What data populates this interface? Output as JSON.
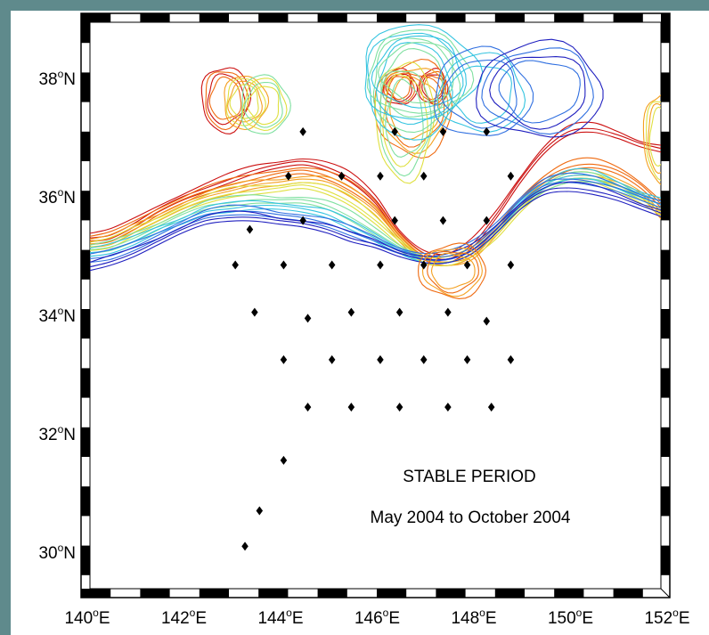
{
  "colors": {
    "frame_teal": "#5f8a8c",
    "frame_ticks": "#000000",
    "markers": "#000000",
    "palette": [
      "#1f1fbf",
      "#2f6fe0",
      "#35c4e0",
      "#7fe0a0",
      "#dfe040",
      "#f4a020",
      "#ef6a10",
      "#cc1010"
    ]
  },
  "annotation": {
    "line1": "STABLE PERIOD",
    "line2": "May 2004 to October 2004"
  },
  "x_axis_labels": [
    {
      "deg": "140",
      "hemi": "E"
    },
    {
      "deg": "142",
      "hemi": "E"
    },
    {
      "deg": "144",
      "hemi": "E"
    },
    {
      "deg": "146",
      "hemi": "E"
    },
    {
      "deg": "148",
      "hemi": "E"
    },
    {
      "deg": "150",
      "hemi": "E"
    },
    {
      "deg": "152",
      "hemi": "E"
    }
  ],
  "y_axis_labels": [
    {
      "deg": "38",
      "hemi": "N"
    },
    {
      "deg": "36",
      "hemi": "N"
    },
    {
      "deg": "34",
      "hemi": "N"
    },
    {
      "deg": "32",
      "hemi": "N"
    },
    {
      "deg": "30",
      "hemi": "N"
    }
  ],
  "map": {
    "lon_range": [
      140,
      152
    ],
    "lat_range": [
      29.1,
      39.0
    ],
    "degree_symbol": "o",
    "stations": [
      [
        144.5,
        37.1
      ],
      [
        146.4,
        37.1
      ],
      [
        147.4,
        37.1
      ],
      [
        148.3,
        37.1
      ],
      [
        144.2,
        36.35
      ],
      [
        145.3,
        36.35
      ],
      [
        146.1,
        36.35
      ],
      [
        147.0,
        36.35
      ],
      [
        148.8,
        36.35
      ],
      [
        144.5,
        35.6
      ],
      [
        146.4,
        35.6
      ],
      [
        147.4,
        35.6
      ],
      [
        148.3,
        35.6
      ],
      [
        143.4,
        35.45
      ],
      [
        143.1,
        34.85
      ],
      [
        144.1,
        34.85
      ],
      [
        145.1,
        34.85
      ],
      [
        146.1,
        34.85
      ],
      [
        147.0,
        34.85
      ],
      [
        147.9,
        34.85
      ],
      [
        148.8,
        34.85
      ],
      [
        143.5,
        34.05
      ],
      [
        144.6,
        33.95
      ],
      [
        145.5,
        34.05
      ],
      [
        146.5,
        34.05
      ],
      [
        147.5,
        34.05
      ],
      [
        148.3,
        33.9
      ],
      [
        144.1,
        33.25
      ],
      [
        145.1,
        33.25
      ],
      [
        146.1,
        33.25
      ],
      [
        147.0,
        33.25
      ],
      [
        147.9,
        33.25
      ],
      [
        148.8,
        33.25
      ],
      [
        144.6,
        32.45
      ],
      [
        145.5,
        32.45
      ],
      [
        146.5,
        32.45
      ],
      [
        147.5,
        32.45
      ],
      [
        148.4,
        32.45
      ],
      [
        144.1,
        31.55
      ],
      [
        143.6,
        30.7
      ],
      [
        143.3,
        30.1
      ]
    ],
    "path_lons": [
      140,
      140.5,
      141,
      141.5,
      142,
      142.5,
      143,
      143.5,
      144,
      144.5,
      145,
      145.5,
      146,
      146.5,
      147,
      147.5,
      148,
      148.5,
      149,
      149.5,
      150,
      150.5,
      151,
      151.5,
      152
    ],
    "front_lines": [
      {
        "color_index": 7,
        "lats": [
          35.3,
          35.35,
          35.55,
          35.8,
          36.0,
          36.15,
          36.3,
          36.45,
          36.55,
          36.6,
          36.5,
          36.3,
          35.95,
          35.4,
          35.05,
          34.95,
          35.2,
          35.7,
          36.3,
          36.8,
          37.1,
          37.15,
          37.05,
          36.9,
          36.8
        ]
      },
      {
        "color_index": 6,
        "lats": [
          35.25,
          35.3,
          35.5,
          35.75,
          35.95,
          36.1,
          36.2,
          36.3,
          36.4,
          36.45,
          36.35,
          36.15,
          35.85,
          35.35,
          35.0,
          34.9,
          35.05,
          35.45,
          35.95,
          36.3,
          36.5,
          36.55,
          36.45,
          36.2,
          35.8
        ]
      },
      {
        "color_index": 5,
        "lats": [
          35.2,
          35.25,
          35.45,
          35.65,
          35.85,
          36.0,
          36.1,
          36.2,
          36.25,
          36.3,
          36.25,
          36.05,
          35.75,
          35.3,
          34.95,
          34.9,
          35.0,
          35.4,
          35.85,
          36.2,
          36.35,
          36.35,
          36.25,
          36.05,
          35.6
        ]
      },
      {
        "color_index": 4,
        "lats": [
          35.15,
          35.2,
          35.4,
          35.6,
          35.8,
          35.95,
          36.05,
          36.1,
          36.15,
          36.2,
          36.1,
          35.9,
          35.6,
          35.25,
          34.95,
          34.9,
          35.05,
          35.35,
          35.8,
          36.15,
          36.3,
          36.3,
          36.15,
          35.95,
          35.7
        ]
      },
      {
        "color_index": 3,
        "lats": [
          35.1,
          35.15,
          35.3,
          35.5,
          35.7,
          35.85,
          35.9,
          35.95,
          35.95,
          35.95,
          35.85,
          35.65,
          35.4,
          35.15,
          34.95,
          34.95,
          35.1,
          35.45,
          35.85,
          36.15,
          36.3,
          36.3,
          36.2,
          36.0,
          35.85
        ]
      },
      {
        "color_index": 2,
        "lats": [
          35.05,
          35.1,
          35.25,
          35.45,
          35.6,
          35.75,
          35.8,
          35.85,
          35.85,
          35.8,
          35.7,
          35.5,
          35.3,
          35.1,
          34.95,
          34.95,
          35.1,
          35.45,
          35.9,
          36.2,
          36.35,
          36.35,
          36.2,
          36.05,
          35.9
        ]
      },
      {
        "color_index": 1,
        "lats": [
          34.95,
          35.0,
          35.15,
          35.35,
          35.55,
          35.7,
          35.75,
          35.75,
          35.7,
          35.65,
          35.55,
          35.4,
          35.25,
          35.1,
          35.0,
          35.0,
          35.15,
          35.5,
          35.95,
          36.25,
          36.3,
          36.25,
          36.15,
          36.0,
          35.85
        ]
      },
      {
        "color_index": 0,
        "lats": [
          34.8,
          34.9,
          35.05,
          35.25,
          35.45,
          35.6,
          35.65,
          35.65,
          35.6,
          35.55,
          35.45,
          35.3,
          35.2,
          35.05,
          34.95,
          34.95,
          35.1,
          35.45,
          35.85,
          36.1,
          36.15,
          36.1,
          36.0,
          35.85,
          35.7
        ]
      }
    ],
    "eddies": [
      {
        "lon": 142.9,
        "lat": 37.65,
        "r_lon": 0.5,
        "r_lat": 0.55,
        "color_index": 7
      },
      {
        "lon": 143.3,
        "lat": 37.6,
        "r_lon": 0.45,
        "r_lat": 0.45,
        "color_index": 5
      },
      {
        "lon": 143.7,
        "lat": 37.55,
        "r_lon": 0.5,
        "r_lat": 0.5,
        "color_index": 3
      },
      {
        "lon": 146.5,
        "lat": 37.85,
        "r_lon": 0.35,
        "r_lat": 0.3,
        "color_index": 7
      },
      {
        "lon": 147.2,
        "lat": 37.85,
        "r_lon": 0.3,
        "r_lat": 0.3,
        "color_index": 7
      },
      {
        "lon": 146.8,
        "lat": 37.5,
        "r_lon": 0.8,
        "r_lat": 0.8,
        "color_index": 6
      },
      {
        "lon": 146.6,
        "lat": 37.3,
        "r_lon": 0.6,
        "r_lat": 1.0,
        "color_index": 4
      },
      {
        "lon": 146.8,
        "lat": 37.9,
        "r_lon": 1.0,
        "r_lat": 0.9,
        "color_index": 2
      },
      {
        "lon": 146.9,
        "lat": 38.1,
        "r_lon": 1.2,
        "r_lat": 0.8,
        "color_index": 2
      },
      {
        "lon": 148.2,
        "lat": 37.75,
        "r_lon": 1.0,
        "r_lat": 0.75,
        "color_index": 1
      },
      {
        "lon": 149.4,
        "lat": 37.8,
        "r_lon": 1.3,
        "r_lat": 0.8,
        "color_index": 0
      },
      {
        "lon": 147.6,
        "lat": 34.75,
        "r_lon": 0.7,
        "r_lat": 0.45,
        "color_index": 6
      },
      {
        "lon": 151.9,
        "lat": 37.0,
        "r_lon": 0.35,
        "r_lat": 0.75,
        "color_index": 5
      }
    ]
  }
}
